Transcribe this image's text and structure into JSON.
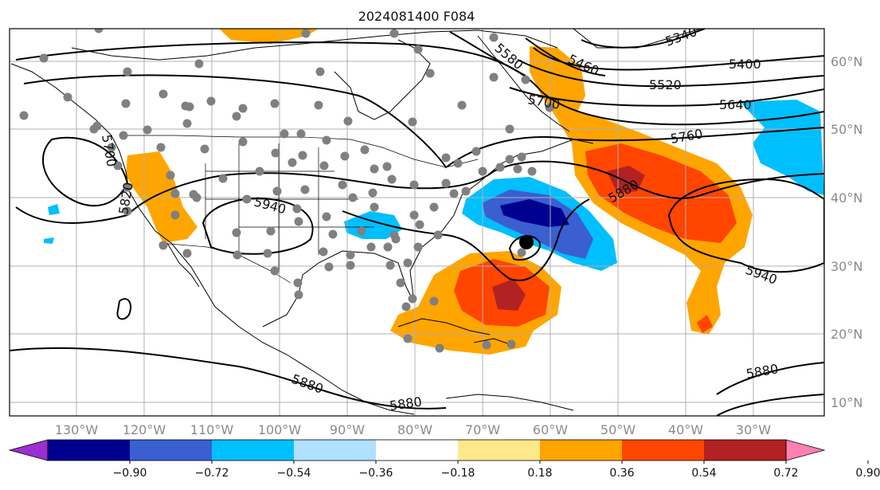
{
  "title": "2024081400 F084",
  "lat_labels": [
    "60°N",
    "50°N",
    "40°N",
    "30°N",
    "20°N",
    "10°N"
  ],
  "lon_labels": [
    "130°W",
    "120°W",
    "110°W",
    "100°W",
    "90°W",
    "80°W",
    "70°W",
    "60°W",
    "50°W",
    "40°W",
    "30°W"
  ],
  "contour_labels": [
    "5340",
    "5460",
    "5400",
    "5580",
    "5520",
    "5640",
    "5700",
    "5760",
    "5880",
    "5940",
    "5880",
    "5940",
    "5880",
    "5880",
    "5700",
    "5820"
  ],
  "colorbar": {
    "ticks": [
      "−0.90",
      "−0.72",
      "−0.54",
      "−0.36",
      "−0.18",
      "0.18",
      "0.36",
      "0.54",
      "0.72",
      "0.90"
    ],
    "colors": {
      "under": "#9b30d0",
      "bins": [
        "#000090",
        "#3a5fd0",
        "#00bfff",
        "#b0e0ff",
        "#ffffff",
        "#ffe88a",
        "#ffa500",
        "#ff4500",
        "#b22222"
      ],
      "over": "#ff80b0"
    }
  },
  "colors": {
    "orange": "#ffa500",
    "red_orange": "#ff4500",
    "dark_red": "#b22222",
    "navy": "#000090",
    "blue": "#3a5fd0",
    "sky": "#00bfff",
    "station_dot": "#808080"
  }
}
